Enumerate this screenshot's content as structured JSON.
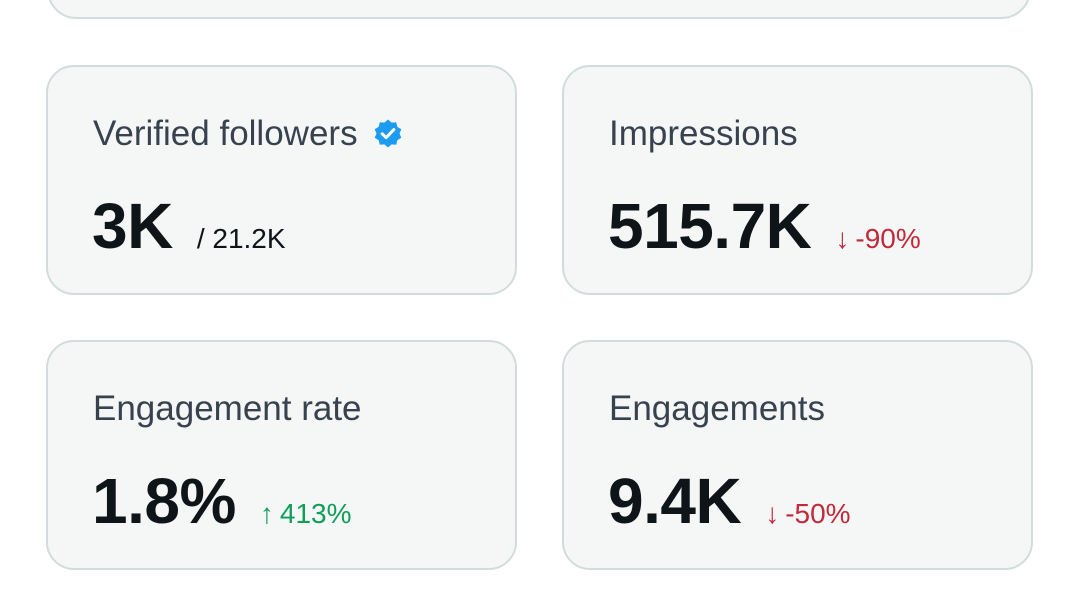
{
  "colors": {
    "card_bg": "#f5f7f7",
    "card_border": "#d3dcdc",
    "label": "#38424f",
    "value": "#0f1419",
    "negative": "#c22a3c",
    "positive": "#119e5a",
    "verified": "#1d9bf0"
  },
  "cards": [
    {
      "label": "Verified followers",
      "icon": "verified-badge-icon",
      "value": "3K",
      "sub": "/ 21.2K"
    },
    {
      "label": "Impressions",
      "value": "515.7K",
      "delta": {
        "arrow": "↓",
        "text": "-90%",
        "direction": "down"
      }
    },
    {
      "label": "Engagement rate",
      "value": "1.8%",
      "delta": {
        "arrow": "↑",
        "text": "413%",
        "direction": "up"
      }
    },
    {
      "label": "Engagements",
      "value": "9.4K",
      "delta": {
        "arrow": "↓",
        "text": "-50%",
        "direction": "down"
      }
    }
  ]
}
